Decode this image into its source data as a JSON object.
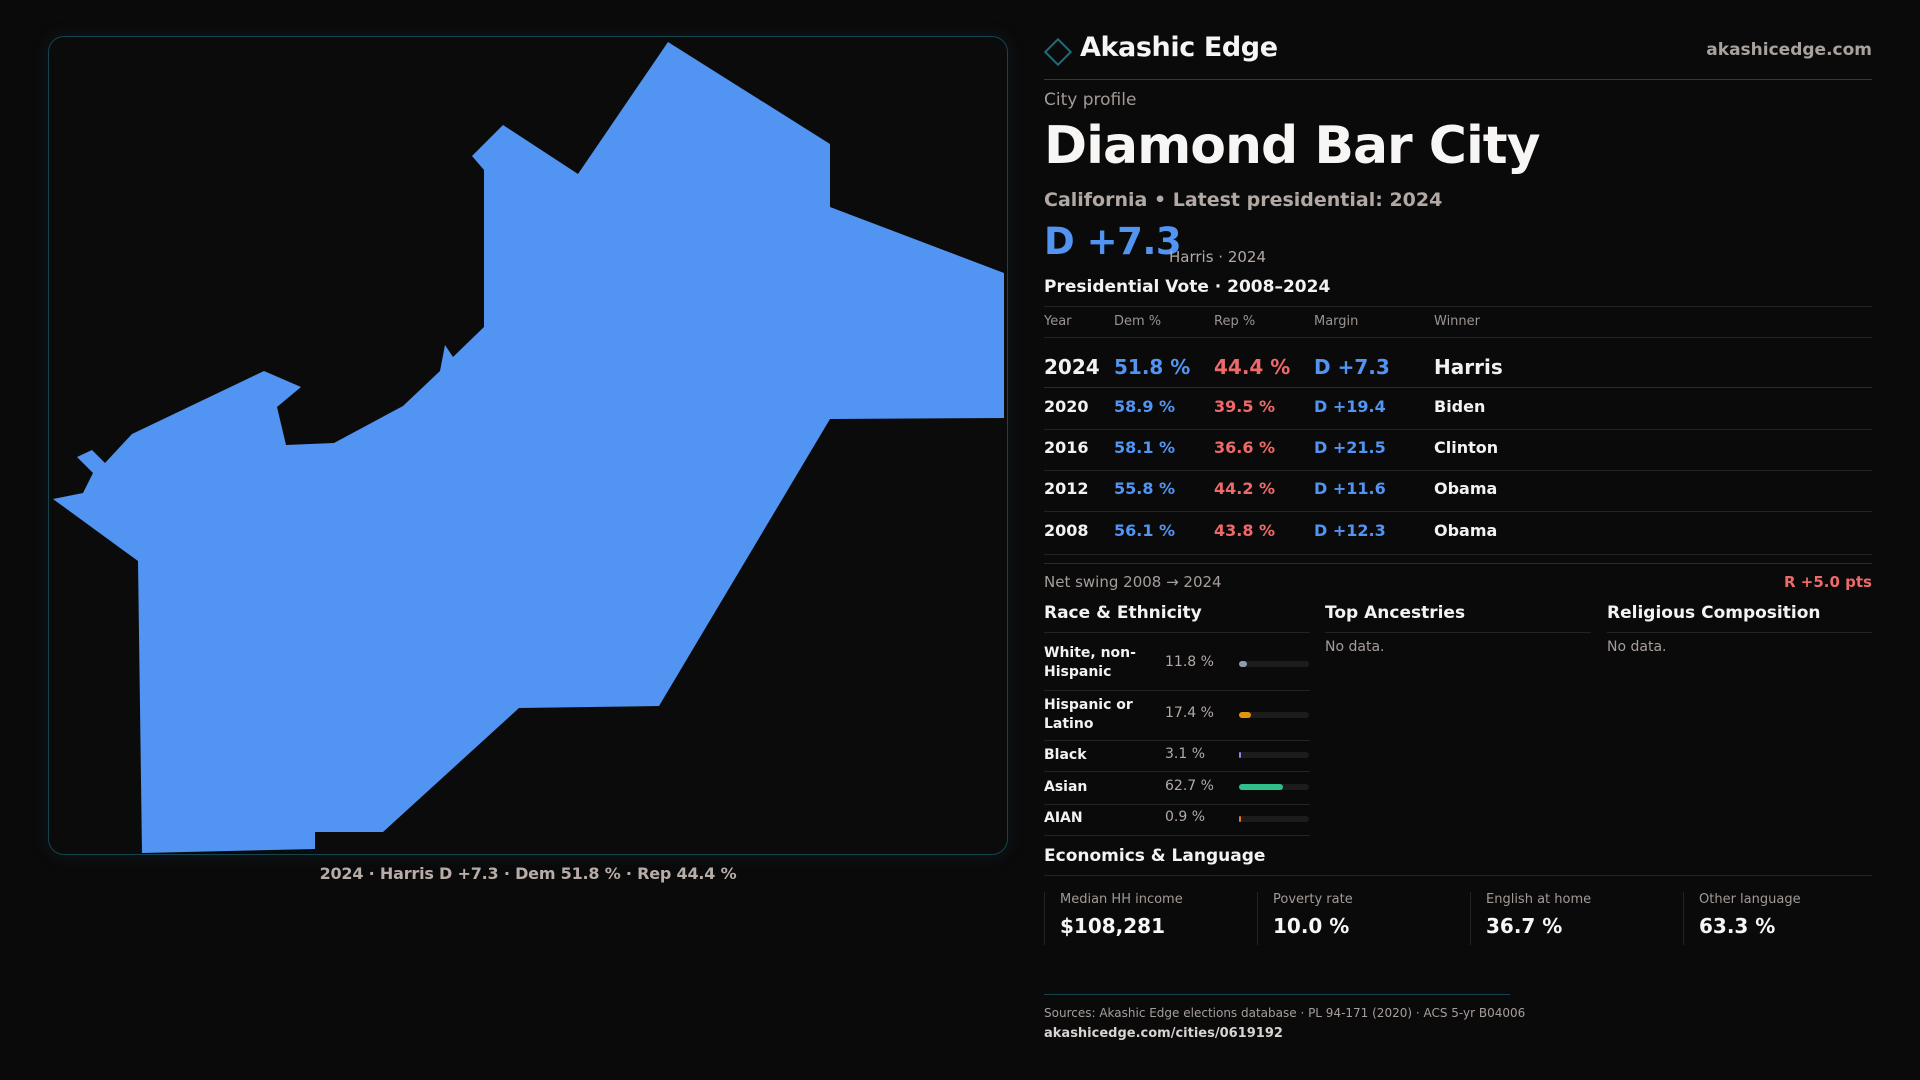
{
  "brand": {
    "name": "Akashic Edge",
    "site": "akashicedge.com",
    "logo_icon": "diamond-icon",
    "accent": "#1f6d78"
  },
  "map": {
    "fill": "#5294f1",
    "caption": "2024 · Harris D +7.3 · Dem 51.8 % · Rep 44.4 %"
  },
  "profile": {
    "eyebrow": "City profile",
    "title": "Diamond Bar City",
    "subtitle": "California • Latest presidential: 2024",
    "margin": "D +7.3",
    "margin_note": "Harris · 2024"
  },
  "vote": {
    "heading": "Presidential Vote · 2008–2024",
    "columns": [
      "Year",
      "Dem %",
      "Rep %",
      "Margin",
      "Winner"
    ],
    "rows": [
      {
        "year": "2024",
        "dem": "51.8 %",
        "rep": "44.4 %",
        "margin": "D +7.3",
        "winner": "Harris"
      },
      {
        "year": "2020",
        "dem": "58.9 %",
        "rep": "39.5 %",
        "margin": "D +19.4",
        "winner": "Biden"
      },
      {
        "year": "2016",
        "dem": "58.1 %",
        "rep": "36.6 %",
        "margin": "D +21.5",
        "winner": "Clinton"
      },
      {
        "year": "2012",
        "dem": "55.8 %",
        "rep": "44.2 %",
        "margin": "D +11.6",
        "winner": "Obama"
      },
      {
        "year": "2008",
        "dem": "56.1 %",
        "rep": "43.8 %",
        "margin": "D +12.3",
        "winner": "Obama"
      }
    ],
    "swing_label": "Net swing 2008 → 2024",
    "swing_value": "R +5.0 pts",
    "colors": {
      "dem": "#5294f1",
      "rep": "#ee6a6a"
    }
  },
  "race": {
    "heading": "Race & Ethnicity",
    "items": [
      {
        "label": "White, non-Hispanic",
        "pct": "11.8 %",
        "value": 11.8,
        "color": "#8f9bb0"
      },
      {
        "label": "Hispanic or Latino",
        "pct": "17.4 %",
        "value": 17.4,
        "color": "#e0940f"
      },
      {
        "label": "Black",
        "pct": "3.1 %",
        "value": 3.1,
        "color": "#9b7ff0"
      },
      {
        "label": "Asian",
        "pct": "62.7 %",
        "value": 62.7,
        "color": "#2fbf8a"
      },
      {
        "label": "AIAN",
        "pct": "0.9 %",
        "value": 0.9,
        "color": "#e07a1a"
      }
    ]
  },
  "ancestries": {
    "heading": "Top Ancestries",
    "empty": "No data."
  },
  "religion": {
    "heading": "Religious Composition",
    "empty": "No data."
  },
  "economics": {
    "heading": "Economics & Language",
    "stats": [
      {
        "label": "Median HH income",
        "value": "$108,281"
      },
      {
        "label": "Poverty rate",
        "value": "10.0 %"
      },
      {
        "label": "English at home",
        "value": "36.7 %"
      },
      {
        "label": "Other language",
        "value": "63.3 %"
      }
    ]
  },
  "footer": {
    "sources": "Sources: Akashic Edge elections database · PL 94-171 (2020) · ACS 5-yr B04006",
    "url": "akashicedge.com/cities/0619192"
  }
}
